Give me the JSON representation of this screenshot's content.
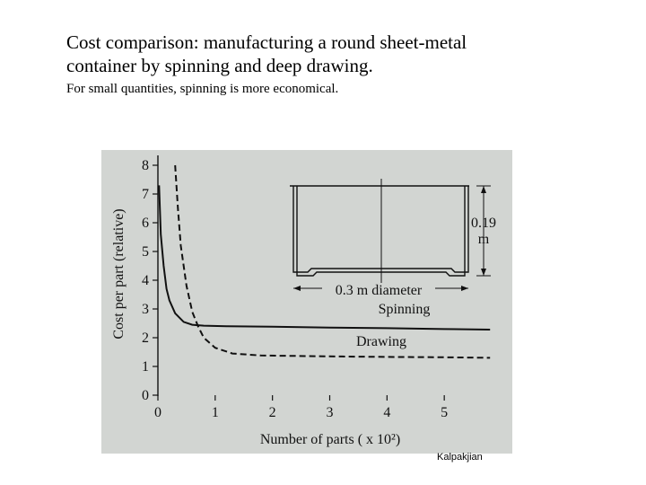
{
  "header": {
    "title_line1": "Cost comparison:  manufacturing a round sheet-metal",
    "title_line2": "container by spinning and deep drawing.",
    "subtitle": "For small quantities, spinning is more economical."
  },
  "credit": "Kalpakjian",
  "colors": {
    "panel": "#d2d5d2",
    "ink": "#111111"
  },
  "chart_data": {
    "type": "line",
    "xlabel": "Number of parts ( x 10²)",
    "ylabel": "Cost per part (relative)",
    "xlim": [
      0,
      6
    ],
    "ylim": [
      0,
      8
    ],
    "x_ticks": [
      0,
      1,
      2,
      3,
      4,
      5
    ],
    "y_ticks": [
      0,
      1,
      2,
      3,
      4,
      5,
      6,
      7,
      8
    ],
    "grid": false,
    "series": [
      {
        "name": "Spinning",
        "line_style": "solid",
        "points": [
          [
            0.02,
            7.3
          ],
          [
            0.05,
            5.6
          ],
          [
            0.1,
            4.5
          ],
          [
            0.15,
            3.7
          ],
          [
            0.2,
            3.3
          ],
          [
            0.3,
            2.85
          ],
          [
            0.45,
            2.55
          ],
          [
            0.6,
            2.45
          ],
          [
            0.8,
            2.42
          ],
          [
            1.2,
            2.4
          ],
          [
            2,
            2.38
          ],
          [
            3,
            2.35
          ],
          [
            4,
            2.33
          ],
          [
            5,
            2.3
          ],
          [
            5.8,
            2.28
          ]
        ]
      },
      {
        "name": "Drawing",
        "line_style": "dashed",
        "points": [
          [
            0.3,
            8.0
          ],
          [
            0.35,
            6.5
          ],
          [
            0.4,
            5.2
          ],
          [
            0.5,
            3.8
          ],
          [
            0.6,
            2.9
          ],
          [
            0.7,
            2.4
          ],
          [
            0.8,
            2.0
          ],
          [
            1.0,
            1.65
          ],
          [
            1.3,
            1.45
          ],
          [
            1.8,
            1.38
          ],
          [
            3,
            1.35
          ],
          [
            4,
            1.33
          ],
          [
            5,
            1.32
          ],
          [
            5.8,
            1.3
          ]
        ]
      }
    ],
    "annotations": {
      "height_label_value": "0.19",
      "height_label_unit": "m",
      "diameter_label": "0.3 m diameter"
    }
  }
}
